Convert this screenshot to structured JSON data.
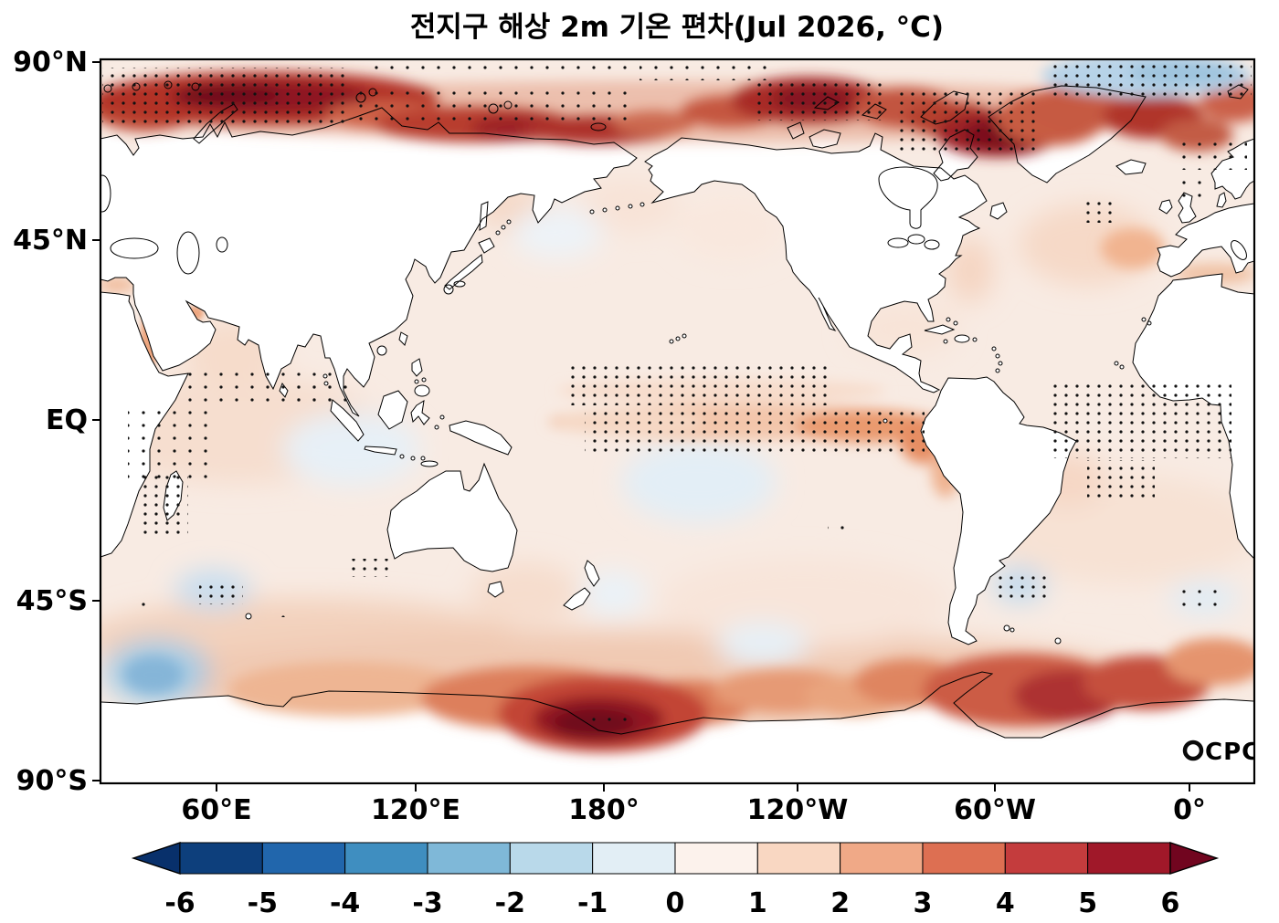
{
  "title": "전지구 해상 2m 기온 편차(Jul 2026, °C)",
  "watermark": {
    "logo": "circle",
    "text": "CPC"
  },
  "axes": {
    "lat_ticks": [
      "90°N",
      "45°N",
      "EQ",
      "45°S",
      "90°S"
    ],
    "lon_ticks": [
      "60°E",
      "120°E",
      "180°",
      "120°W",
      "60°W",
      "0°"
    ]
  },
  "colorbar": {
    "unit": "°C",
    "min": -6,
    "max": 6,
    "extend": "both",
    "tick_labels": [
      "-6",
      "-5",
      "-4",
      "-3",
      "-2",
      "-1",
      "0",
      "1",
      "2",
      "3",
      "4",
      "5",
      "6"
    ],
    "colors": [
      "#0d3f7c",
      "#2166ac",
      "#3f8ec0",
      "#7fb8d8",
      "#b9d9ea",
      "#e2eef5",
      "#fcf2ec",
      "#f9d7c2",
      "#f0a987",
      "#dd6f52",
      "#c43c3d",
      "#a01829"
    ],
    "arrow_left_color": "#08306b",
    "arrow_right_color": "#71051f"
  },
  "chart_data": {
    "type": "heatmap",
    "title": "전지구 해상 2m 기온 편차(Jul 2026, °C)",
    "variable": "2 m temperature anomaly over ocean",
    "unit": "°C",
    "valid_time": "Jul 2026",
    "projection": "equirectangular, Pacific-centered",
    "lon_axis": {
      "ticks": [
        "60°E",
        "120°E",
        "180°",
        "120°W",
        "60°W",
        "0°"
      ],
      "range": [
        "20°E",
        "380°E"
      ]
    },
    "lat_axis": {
      "ticks": [
        "90°N",
        "45°N",
        "EQ",
        "45°S",
        "90°S"
      ],
      "range": [
        -90,
        90
      ]
    },
    "colorbar_levels": [
      -6,
      -5,
      -4,
      -3,
      -2,
      -1,
      0,
      1,
      2,
      3,
      4,
      5,
      6
    ],
    "features": [
      {
        "region": "Arctic Ocean rim (Barents/Kara/Laptev/East Siberian/Beaufort seas, 65-85N)",
        "anomaly_c": "+3 to +6",
        "stippled": true
      },
      {
        "region": "Baffin Bay / Davis Strait / Greenland coast",
        "anomaly_c": "+4 to +6",
        "stippled": true
      },
      {
        "region": "High Arctic near Svalbard (top right)",
        "anomaly_c": "-0.5 to -1.5",
        "stippled": true
      },
      {
        "region": "Equatorial central-eastern Pacific (El Nino-like tongue)",
        "anomaly_c": "+1 to +3",
        "stippled": true
      },
      {
        "region": "Peru/Ecuador coastal zone",
        "anomaly_c": "+2 to +3",
        "stippled": true
      },
      {
        "region": "Tropical Indian Ocean and Arabian Sea",
        "anomaly_c": "+0.5 to +1",
        "stippled": true
      },
      {
        "region": "Equatorial Atlantic (right edge)",
        "anomaly_c": "+0.5 to +1",
        "stippled": true
      },
      {
        "region": "Southwest Indian Ocean ~45S, 60E",
        "anomaly_c": "-1 to -2",
        "stippled": true
      },
      {
        "region": "Southwest Atlantic ~45S, 55W",
        "anomaly_c": "-1 to -2",
        "stippled": true
      },
      {
        "region": "Southern Ocean / Ross Sea sector (~70S, 160E-150W)",
        "anomaly_c": "+4 to +6",
        "stippled": true
      },
      {
        "region": "Amundsen-Bellingshausen-Weddell seas",
        "anomaly_c": "+3 to +5",
        "stippled": false
      },
      {
        "region": "Southern Ocean ~40E, 60-65S",
        "anomaly_c": "-2 to -3",
        "stippled": false
      },
      {
        "region": "North Atlantic 40-55N",
        "anomaly_c": "+0.5 to +1.5",
        "stippled": false
      },
      {
        "region": "Most remaining ocean areas",
        "anomaly_c": "0 to +1",
        "stippled": false
      }
    ],
    "notes": "Black stippling marks dotted significance regions; land areas are masked white."
  }
}
